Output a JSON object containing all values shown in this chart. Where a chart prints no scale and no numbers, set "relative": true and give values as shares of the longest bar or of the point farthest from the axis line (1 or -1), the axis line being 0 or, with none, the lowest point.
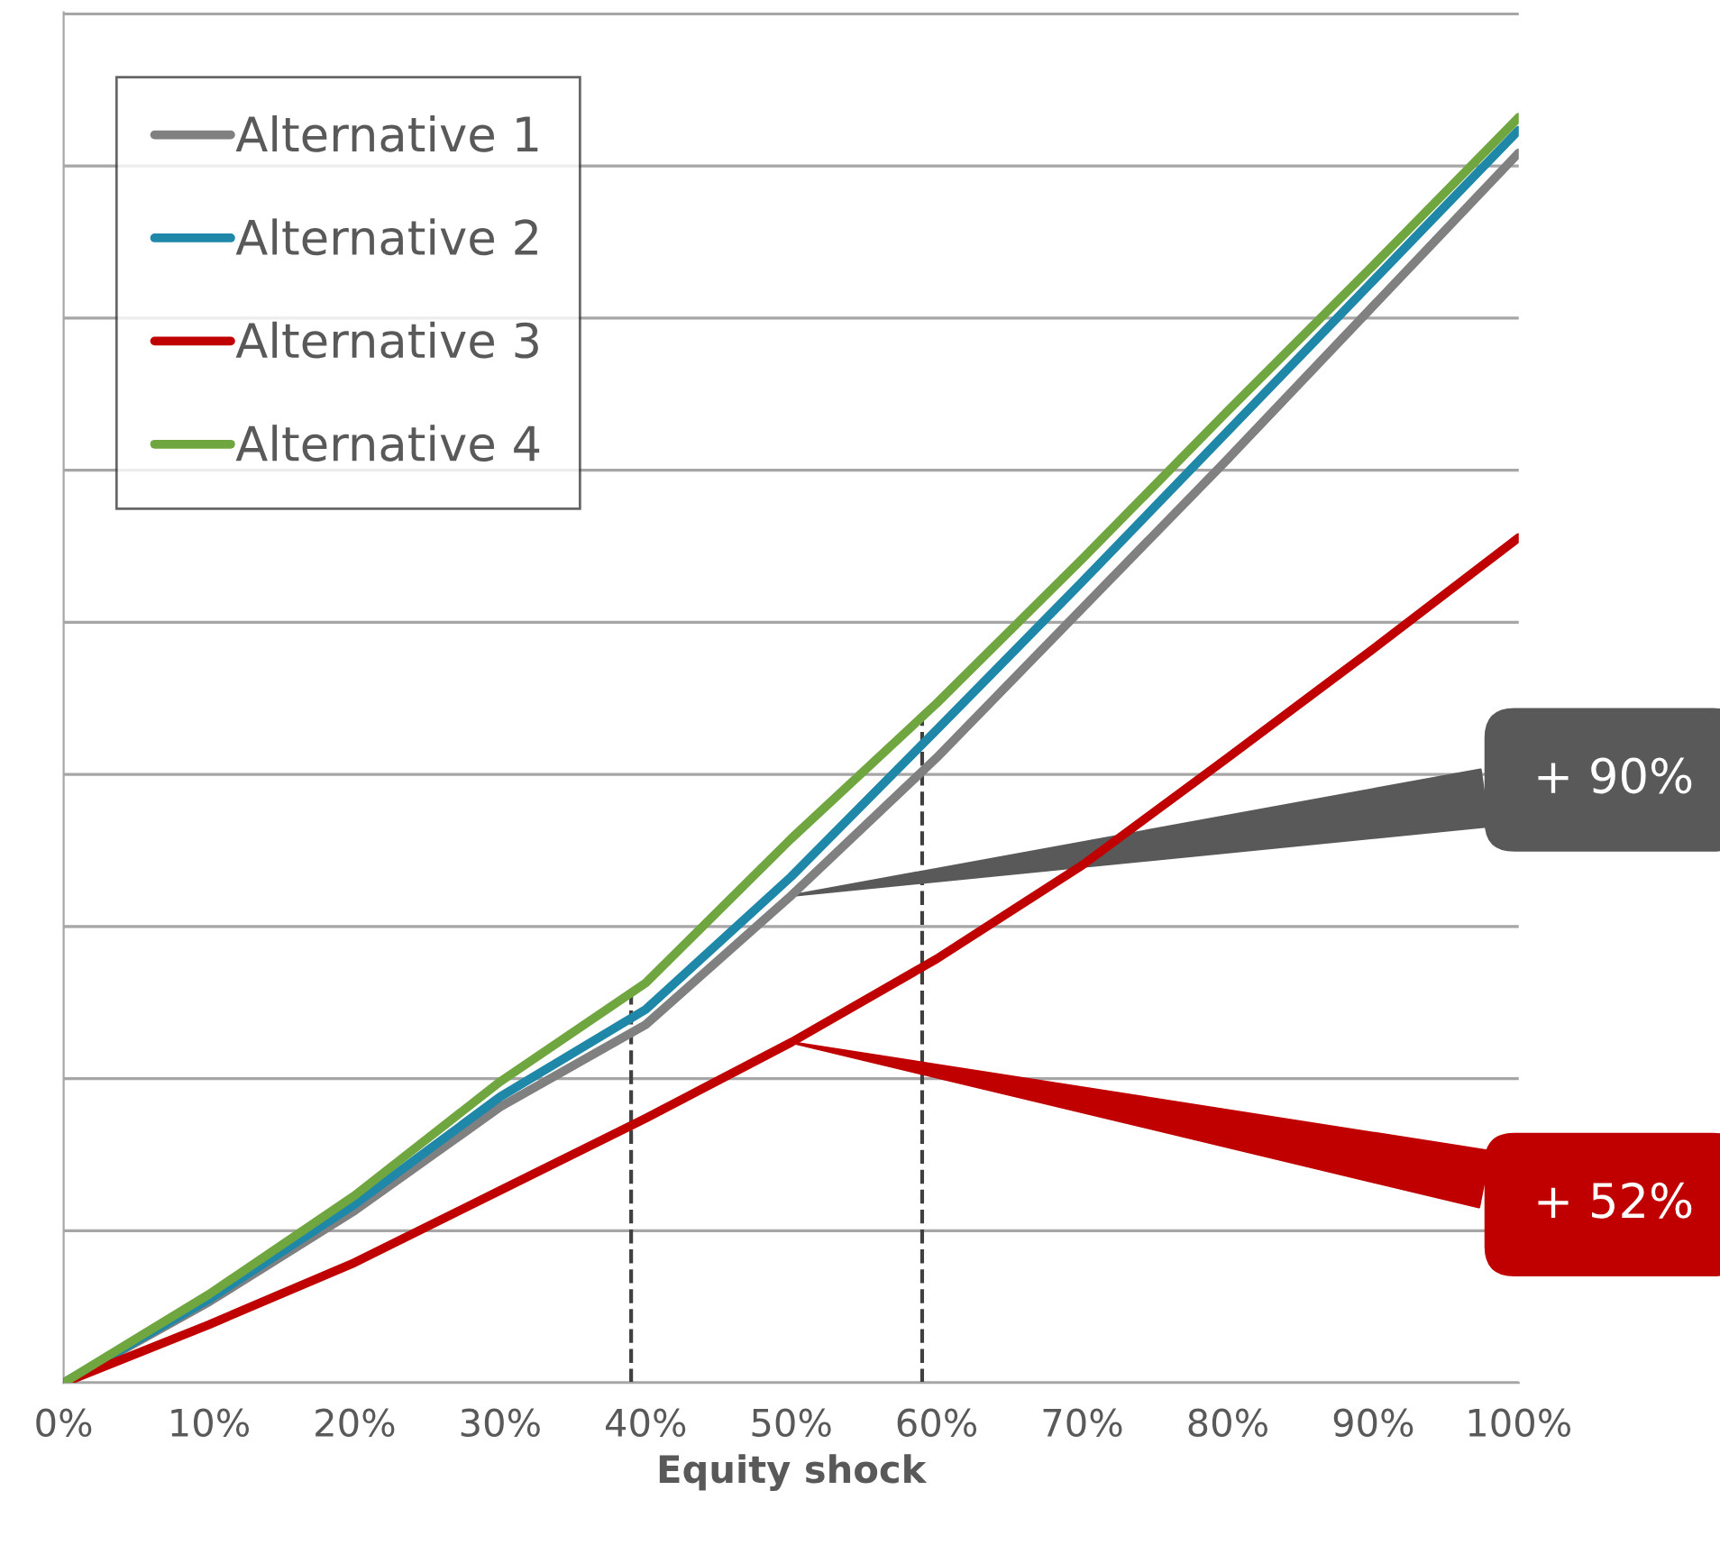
{
  "chart_data": {
    "type": "line",
    "relative": true,
    "xlabel": "Equity shock",
    "x": [
      0,
      10,
      20,
      30,
      40,
      50,
      60,
      70,
      80,
      90,
      100
    ],
    "xlim": [
      0,
      100
    ],
    "xticks": [
      {
        "value": 0,
        "label": "0%"
      },
      {
        "value": 10,
        "label": "10%"
      },
      {
        "value": 20,
        "label": "20%"
      },
      {
        "value": 30,
        "label": "30%"
      },
      {
        "value": 40,
        "label": "40%"
      },
      {
        "value": 50,
        "label": "50%"
      },
      {
        "value": 60,
        "label": "60%"
      },
      {
        "value": 70,
        "label": "70%"
      },
      {
        "value": 80,
        "label": "80%"
      },
      {
        "value": 90,
        "label": "90%"
      },
      {
        "value": 100,
        "label": "100%"
      }
    ],
    "series": [
      {
        "name": "Alternative 1",
        "color": "#808080",
        "values": [
          0,
          0.064,
          0.136,
          0.218,
          0.283,
          0.385,
          0.494,
          0.612,
          0.73,
          0.851,
          0.972
        ]
      },
      {
        "name": "Alternative 2",
        "color": "#1f87a8",
        "values": [
          0,
          0.066,
          0.141,
          0.226,
          0.295,
          0.4,
          0.516,
          0.633,
          0.752,
          0.871,
          0.99
        ]
      },
      {
        "name": "Alternative 3",
        "color": "#c00000",
        "values": [
          0,
          0.046,
          0.095,
          0.152,
          0.209,
          0.269,
          0.335,
          0.409,
          0.494,
          0.58,
          0.668
        ]
      },
      {
        "name": "Alternative 4",
        "color": "#70a640",
        "values": [
          0,
          0.07,
          0.148,
          0.238,
          0.316,
          0.43,
          0.537,
          0.651,
          0.768,
          0.883,
          1
        ]
      }
    ],
    "ref_lines": [
      {
        "axis": "x",
        "value": 39,
        "color": "#404040",
        "line_style": "dashed"
      },
      {
        "axis": "x",
        "value": 59,
        "color": "#404040",
        "line_style": "dashed"
      }
    ],
    "annotations": [
      {
        "text": "+ 90%",
        "x": 50,
        "y": 0.385
      },
      {
        "text": "+ 52%",
        "x": 50,
        "y": 0.269
      }
    ],
    "grid": "y",
    "legend": "top left",
    "marker": "none",
    "line_style": "solid"
  }
}
